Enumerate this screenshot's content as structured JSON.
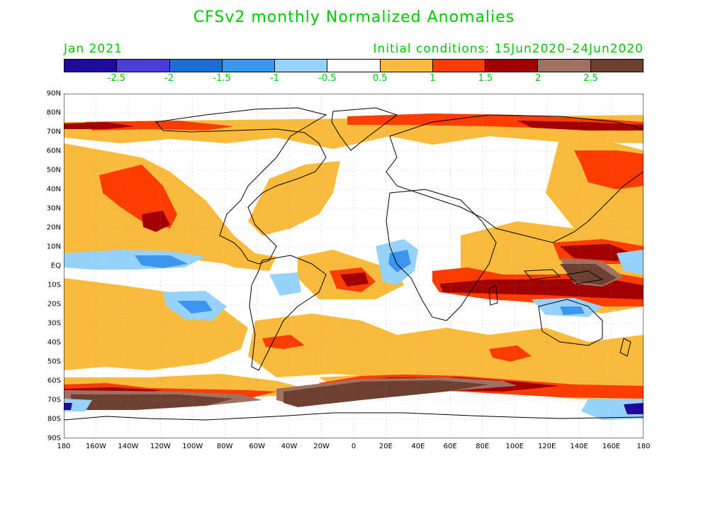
{
  "header": {
    "title": "CFSv2 monthly Normalized Anomalies",
    "valid_month": "Jan 2021",
    "initial_conditions": "Initial conditions: 15Jun2020–24Jun2020"
  },
  "legend": {
    "colors": [
      "#1e0a9c",
      "#4a3cd6",
      "#1e6ed2",
      "#3c96f0",
      "#96d2fa",
      "#ffffff",
      "#faba3c",
      "#ff3c00",
      "#a00000",
      "#a07060",
      "#6e4032"
    ],
    "labels": [
      "-2.5",
      "-2",
      "-1.5",
      "-1",
      "-0.5",
      "0.5",
      "1",
      "1.5",
      "2",
      "2.5"
    ]
  },
  "map": {
    "lat_labels": [
      "90N",
      "80N",
      "70N",
      "60N",
      "50N",
      "40N",
      "30N",
      "20N",
      "10N",
      "EQ",
      "10S",
      "20S",
      "30S",
      "40S",
      "50S",
      "60S",
      "70S",
      "80S",
      "90S"
    ],
    "lon_labels": [
      "180",
      "160W",
      "140W",
      "120W",
      "100W",
      "80W",
      "60W",
      "40W",
      "20W",
      "0",
      "20E",
      "40E",
      "60E",
      "80E",
      "100E",
      "120E",
      "140E",
      "160E",
      "180"
    ]
  },
  "colors": {
    "text_accent": "#00c800",
    "coastline": "#000000",
    "grid": "#9a9a9a"
  }
}
